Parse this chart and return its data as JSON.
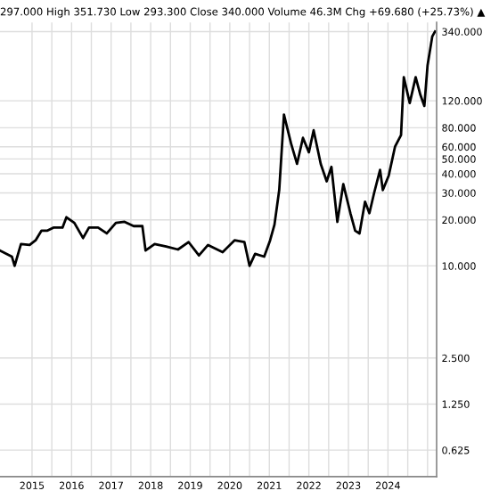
{
  "chart_data": {
    "type": "line",
    "title": "297.000 High 351.730 Low 293.300 Close 340.000 Volume 46.3M Chg +69.680 (+25.73%) ▲",
    "x": [
      2014.19,
      2014.49,
      2014.56,
      2014.72,
      2014.94,
      2015.09,
      2015.24,
      2015.39,
      2015.54,
      2015.77,
      2015.87,
      2016.07,
      2016.29,
      2016.44,
      2016.67,
      2016.89,
      2017.12,
      2017.34,
      2017.57,
      2017.79,
      2017.87,
      2018.1,
      2018.39,
      2018.69,
      2018.96,
      2019.22,
      2019.45,
      2019.82,
      2020.12,
      2020.37,
      2020.5,
      2020.64,
      2020.87,
      2021.02,
      2021.13,
      2021.25,
      2021.37,
      2021.55,
      2021.7,
      2021.85,
      2022.0,
      2022.12,
      2022.3,
      2022.45,
      2022.57,
      2022.72,
      2022.87,
      2023.05,
      2023.17,
      2023.28,
      2023.42,
      2023.53,
      2023.65,
      2023.8,
      2023.87,
      2024.02,
      2024.18,
      2024.33,
      2024.4,
      2024.55,
      2024.7,
      2024.82,
      2024.92,
      2025.0,
      2025.12,
      2025.19
    ],
    "series": [
      {
        "color": "#000000",
        "values": [
          12.6,
          11.5,
          10.0,
          13.9,
          13.7,
          14.7,
          17.0,
          17.0,
          17.8,
          17.8,
          20.8,
          19.1,
          15.2,
          17.8,
          17.8,
          16.3,
          19.1,
          19.4,
          18.2,
          18.2,
          12.6,
          13.9,
          13.4,
          12.8,
          14.3,
          11.7,
          13.7,
          12.3,
          14.7,
          14.3,
          10.0,
          12.0,
          11.5,
          14.7,
          18.6,
          31.3,
          97.5,
          63,
          46.4,
          68.7,
          55.3,
          77,
          46.4,
          35.7,
          44.4,
          19.4,
          34.2,
          22.1,
          17.0,
          16.3,
          26.3,
          22.1,
          30.0,
          42.4,
          31.3,
          39.0,
          60.4,
          71.6,
          171,
          116,
          171,
          131,
          111,
          204,
          316,
          340
        ]
      }
    ],
    "log": "y",
    "grid": true,
    "marker": "none",
    "line_style": "solid",
    "xlim": [
      2014.19,
      2025.23
    ],
    "xticks": [
      2015,
      {
        "value": 2015.5,
        "label": null
      },
      2016,
      {
        "value": 2016.5,
        "label": null
      },
      2017,
      {
        "value": 2017.5,
        "label": null
      },
      2018,
      {
        "value": 2018.5,
        "label": null
      },
      2019,
      {
        "value": 2019.5,
        "label": null
      },
      2020,
      {
        "value": 2020.5,
        "label": null
      },
      2021,
      {
        "value": 2021.5,
        "label": null
      },
      2022,
      {
        "value": 2022.5,
        "label": null
      },
      2023,
      {
        "value": 2023.5,
        "label": null
      },
      2024,
      {
        "value": 2024.5,
        "label": null
      },
      {
        "value": 2025,
        "label": null
      }
    ],
    "ylim": [
      0.42,
      390
    ],
    "yticks": [
      {
        "value": 340,
        "label": "340.000"
      },
      {
        "value": 120,
        "label": "120.000"
      },
      {
        "value": 80,
        "label": "80.000"
      },
      {
        "value": 60,
        "label": "60.000"
      },
      {
        "value": 50,
        "label": "50.000"
      },
      {
        "value": 40,
        "label": "40.000"
      },
      {
        "value": 30,
        "label": "30.000"
      },
      {
        "value": 20,
        "label": "20.000"
      },
      {
        "value": 10,
        "label": "10.000"
      },
      {
        "value": 2.5,
        "label": "2.500"
      },
      {
        "value": 1.25,
        "label": "1.250"
      },
      {
        "value": 0.625,
        "label": "0.625"
      }
    ]
  }
}
